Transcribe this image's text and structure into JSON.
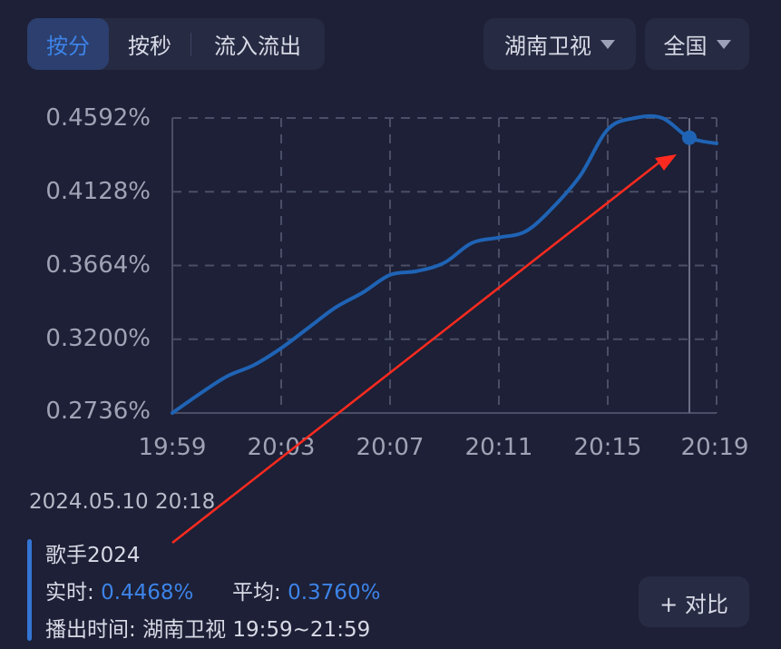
{
  "tabs": [
    "按分",
    "按秒",
    "流入流出"
  ],
  "channel_select": "湖南卫视",
  "region_select": "全国",
  "chart_data": {
    "type": "line",
    "x": [
      "19:59",
      "20:00",
      "20:01",
      "20:02",
      "20:03",
      "20:04",
      "20:05",
      "20:06",
      "20:07",
      "20:08",
      "20:09",
      "20:10",
      "20:11",
      "20:12",
      "20:13",
      "20:14",
      "20:15",
      "20:16",
      "20:17",
      "20:18",
      "20:19"
    ],
    "xticks": [
      "19:59",
      "20:03",
      "20:07",
      "20:11",
      "20:15",
      "20:19"
    ],
    "yticks": [
      "0.4592%",
      "0.4128%",
      "0.3664%",
      "0.3200%",
      "0.2736%"
    ],
    "ylim": [
      0.2736,
      0.4592
    ],
    "series": [
      {
        "values": [
          0.2736,
          0.2856,
          0.2966,
          0.3038,
          0.3144,
          0.3272,
          0.34,
          0.3494,
          0.3605,
          0.3629,
          0.3682,
          0.3805,
          0.384,
          0.388,
          0.4032,
          0.4232,
          0.452,
          0.4592,
          0.4592,
          0.4468,
          0.4432
        ]
      }
    ],
    "highlight": {
      "x": "20:18",
      "value": 0.4468
    },
    "grid": true
  },
  "info": {
    "datetime": "2024.05.10 20:18",
    "program": "歌手2024",
    "realtime_label": "实时:",
    "realtime_value": "0.4468%",
    "average_label": "平均:",
    "average_value": "0.3760%",
    "airtime_label": "播出时间:",
    "airtime_value": "湖南卫视 19:59~21:59"
  },
  "compare_button": "+ 对比",
  "colors": {
    "background": "#1d2036",
    "accent": "#3d83e8",
    "line": "#1f63b5",
    "annotation": "#ff2a1f"
  }
}
